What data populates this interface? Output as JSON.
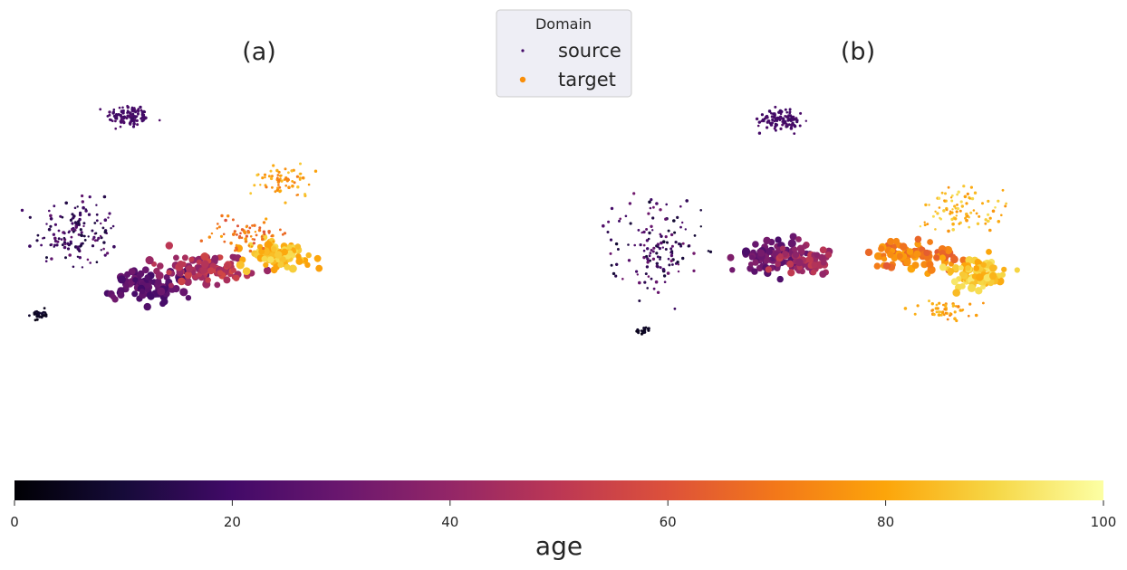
{
  "chart_data": {
    "type": "scatter",
    "panels": [
      {
        "title": "(a)",
        "clusters": [
          {
            "cx": 22,
            "cy": 88,
            "rx": 4,
            "ry": 3,
            "n": 110,
            "age": [
              18,
              24
            ],
            "domain": "source"
          },
          {
            "cx": 11,
            "cy": 52,
            "rx": 7,
            "ry": 8,
            "n": 150,
            "age": [
              10,
              30
            ],
            "domain": "source"
          },
          {
            "cx": 2.5,
            "cy": 27,
            "rx": 1.5,
            "ry": 1.2,
            "n": 30,
            "age": [
              3,
              9
            ],
            "domain": "source"
          },
          {
            "cx": 26,
            "cy": 36,
            "rx": 7,
            "ry": 4,
            "n": 90,
            "age": [
              20,
              32
            ],
            "domain": "target"
          },
          {
            "cx": 38,
            "cy": 41,
            "rx": 8,
            "ry": 4,
            "n": 100,
            "age": [
              38,
              58
            ],
            "domain": "target"
          },
          {
            "cx": 55,
            "cy": 45,
            "rx": 6,
            "ry": 4,
            "n": 80,
            "age": [
              78,
              92
            ],
            "domain": "target"
          },
          {
            "cx": 48,
            "cy": 52,
            "rx": 7,
            "ry": 4,
            "n": 70,
            "age": [
              60,
              80
            ],
            "domain": "source"
          },
          {
            "cx": 55,
            "cy": 68,
            "rx": 6,
            "ry": 4,
            "n": 70,
            "age": [
              70,
              88
            ],
            "domain": "source"
          }
        ]
      },
      {
        "title": "(b)",
        "clusters": [
          {
            "cx": 33,
            "cy": 87,
            "rx": 4,
            "ry": 3,
            "n": 110,
            "age": [
              18,
              24
            ],
            "domain": "source"
          },
          {
            "cx": 6,
            "cy": 48,
            "rx": 8,
            "ry": 12,
            "n": 140,
            "age": [
              8,
              32
            ],
            "domain": "source"
          },
          {
            "cx": 3,
            "cy": 22,
            "rx": 1.2,
            "ry": 1.0,
            "n": 20,
            "age": [
              3,
              9
            ],
            "domain": "source"
          },
          {
            "cx": 30,
            "cy": 45,
            "rx": 6,
            "ry": 4,
            "n": 80,
            "age": [
              22,
              36
            ],
            "domain": "target"
          },
          {
            "cx": 38,
            "cy": 44,
            "rx": 5,
            "ry": 4,
            "n": 60,
            "age": [
              38,
              52
            ],
            "domain": "target"
          },
          {
            "cx": 62,
            "cy": 45,
            "rx": 8,
            "ry": 3,
            "n": 90,
            "age": [
              62,
              80
            ],
            "domain": "target"
          },
          {
            "cx": 75,
            "cy": 40,
            "rx": 6,
            "ry": 4,
            "n": 80,
            "age": [
              80,
              94
            ],
            "domain": "target"
          },
          {
            "cx": 72,
            "cy": 60,
            "rx": 8,
            "ry": 6,
            "n": 90,
            "age": [
              76,
              92
            ],
            "domain": "source"
          },
          {
            "cx": 68,
            "cy": 28,
            "rx": 6,
            "ry": 3,
            "n": 50,
            "age": [
              72,
              86
            ],
            "domain": "source"
          }
        ]
      }
    ],
    "legend": {
      "title": "Domain",
      "placement": "top-center",
      "entries": [
        {
          "label": "source",
          "color": "#420a68"
        },
        {
          "label": "target",
          "color": "#f98e09"
        }
      ]
    },
    "colorbar": {
      "label": "age",
      "colormap": "inferno",
      "range": [
        0,
        100
      ],
      "ticks": [
        0,
        20,
        40,
        60,
        80,
        100
      ]
    },
    "grid": false
  }
}
